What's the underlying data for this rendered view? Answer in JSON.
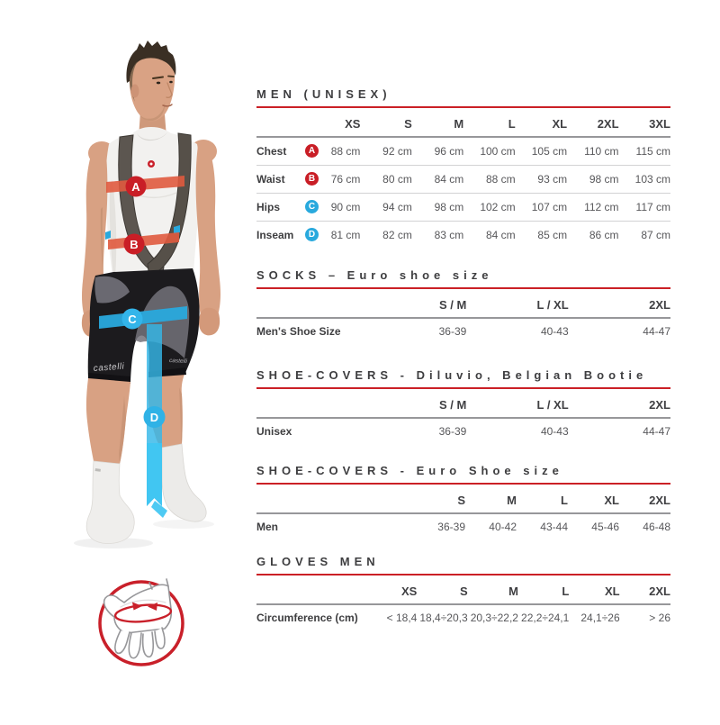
{
  "colors": {
    "accent_red": "#cb2026",
    "accent_blue": "#29a9dd",
    "band_red": "#e05a3e",
    "badge_red": "#c91e26",
    "badge_blue": "#2fb2e6"
  },
  "sections": [
    {
      "id": "men-unisex",
      "title": "MEN (UNISEX)",
      "columns": [
        "XS",
        "S",
        "M",
        "L",
        "XL",
        "2XL",
        "3XL"
      ],
      "rows": [
        {
          "label": "Chest",
          "badge": "A",
          "badge_color": "#c91e26",
          "values": [
            "88 cm",
            "92 cm",
            "96 cm",
            "100 cm",
            "105 cm",
            "110 cm",
            "115 cm"
          ]
        },
        {
          "label": "Waist",
          "badge": "B",
          "badge_color": "#c91e26",
          "values": [
            "76 cm",
            "80 cm",
            "84 cm",
            "88 cm",
            "93 cm",
            "98 cm",
            "103 cm"
          ]
        },
        {
          "label": "Hips",
          "badge": "C",
          "badge_color": "#29a9dd",
          "values": [
            "90 cm",
            "94 cm",
            "98 cm",
            "102 cm",
            "107 cm",
            "112 cm",
            "117 cm"
          ]
        },
        {
          "label": "Inseam",
          "badge": "D",
          "badge_color": "#29a9dd",
          "values": [
            "81 cm",
            "82 cm",
            "83 cm",
            "84 cm",
            "85 cm",
            "86 cm",
            "87 cm"
          ]
        }
      ]
    },
    {
      "id": "socks",
      "title": "SOCKS – Euro shoe size",
      "columns": [
        "S / M",
        "L / XL",
        "2XL"
      ],
      "rows": [
        {
          "label": "Men's Shoe Size",
          "values": [
            "36-39",
            "40-43",
            "44-47"
          ]
        }
      ]
    },
    {
      "id": "shoe-covers-diluvio",
      "title": "SHOE-COVERS - Diluvio, Belgian Bootie",
      "columns": [
        "S / M",
        "L / XL",
        "2XL"
      ],
      "rows": [
        {
          "label": "Unisex",
          "values": [
            "36-39",
            "40-43",
            "44-47"
          ]
        }
      ]
    },
    {
      "id": "shoe-covers-euro",
      "title": "SHOE-COVERS - Euro Shoe size",
      "columns": [
        "S",
        "M",
        "L",
        "XL",
        "2XL"
      ],
      "rows": [
        {
          "label": "Men",
          "values": [
            "36-39",
            "40-42",
            "43-44",
            "45-46",
            "46-48"
          ]
        }
      ]
    },
    {
      "id": "gloves-men",
      "title": "GLOVES MEN",
      "columns": [
        "XS",
        "S",
        "M",
        "L",
        "XL",
        "2XL"
      ],
      "rows": [
        {
          "label": "Circumference (cm)",
          "values": [
            "< 18,4",
            "18,4÷20,3",
            "20,3÷22,2",
            "22,2÷24,1",
            "24,1÷26",
            "> 26"
          ]
        }
      ]
    }
  ],
  "figure": {
    "markers": [
      {
        "letter": "A",
        "meaning": "Chest"
      },
      {
        "letter": "B",
        "meaning": "Waist"
      },
      {
        "letter": "C",
        "meaning": "Hips"
      },
      {
        "letter": "D",
        "meaning": "Inseam"
      }
    ],
    "shorts_logo": "castelli",
    "glove_icon": "glove-circumference-icon"
  }
}
